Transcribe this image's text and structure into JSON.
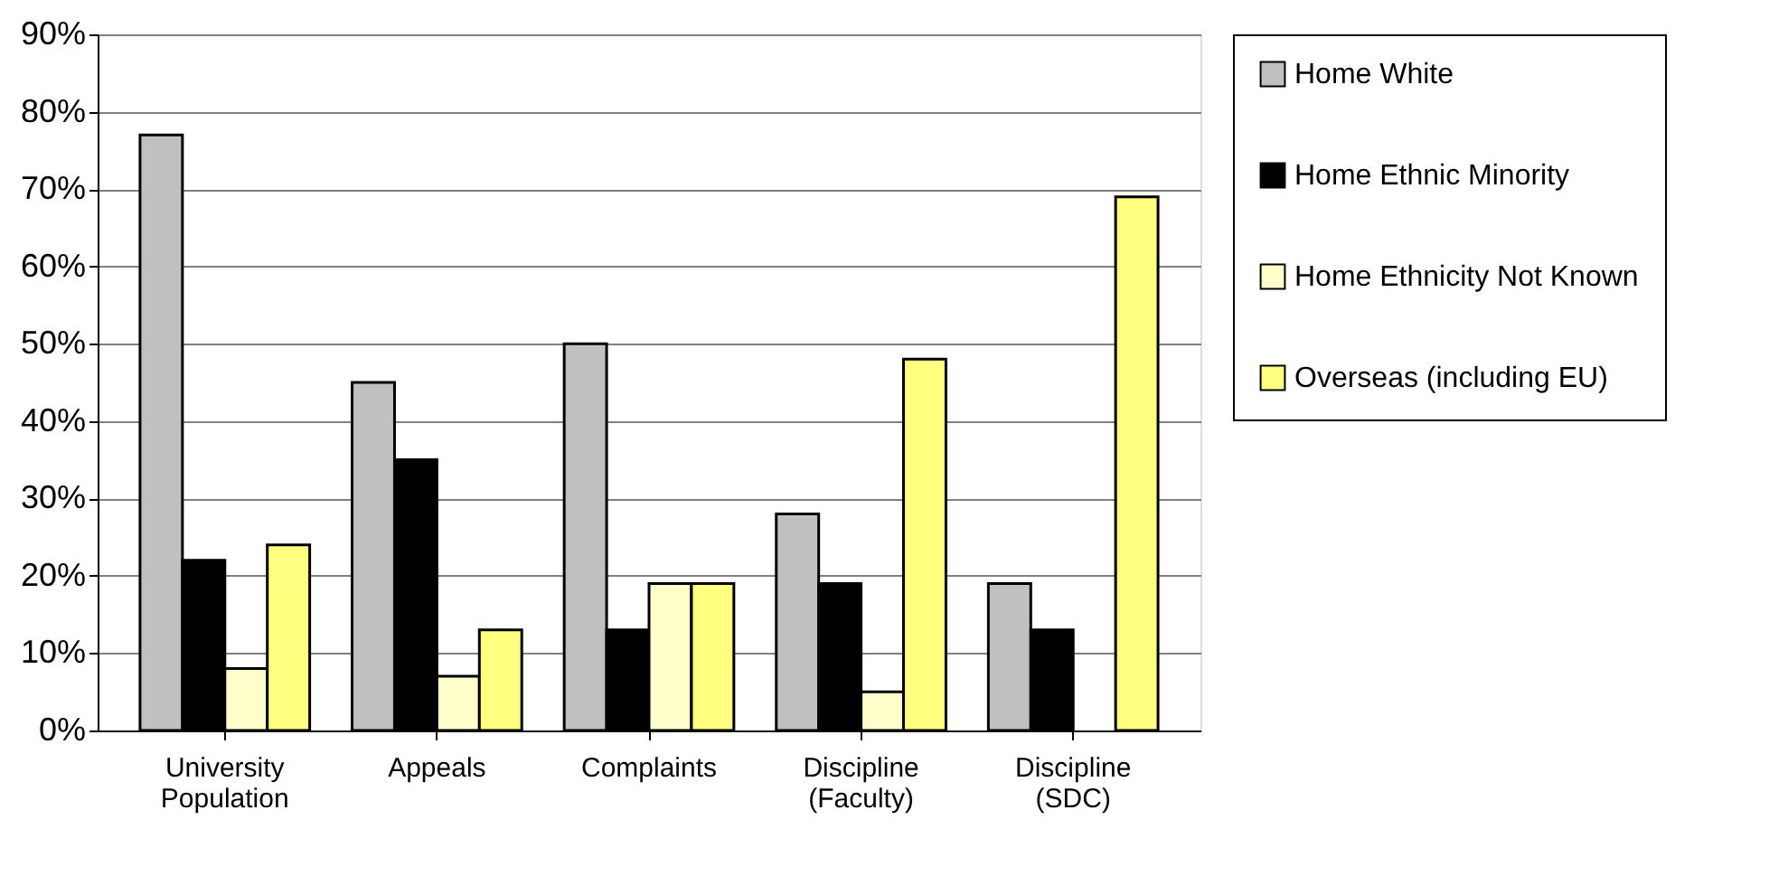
{
  "chart_data": {
    "type": "bar",
    "categories": [
      "University Population",
      "Appeals",
      "Complaints",
      "Discipline (Faculty)",
      "Discipline (SDC)"
    ],
    "series": [
      {
        "name": "Home White",
        "color": "#c0c0c0",
        "values": [
          77,
          45,
          50,
          28,
          19
        ]
      },
      {
        "name": "Home Ethnic Minority",
        "color": "#000000",
        "values": [
          22,
          35,
          13,
          19,
          13
        ]
      },
      {
        "name": "Home Ethnicity Not Known",
        "color": "#ffffcc",
        "values": [
          8,
          7,
          19,
          5,
          null
        ]
      },
      {
        "name": "Overseas (including EU)",
        "color": "#ffff80",
        "values": [
          24,
          13,
          19,
          48,
          69
        ]
      }
    ],
    "ylim": [
      0,
      90
    ],
    "yticks": [
      {
        "value": 0,
        "label": "0%"
      },
      {
        "value": 10,
        "label": "10%"
      },
      {
        "value": 20,
        "label": "20%"
      },
      {
        "value": 30,
        "label": "30%"
      },
      {
        "value": 40,
        "label": "40%"
      },
      {
        "value": 50,
        "label": "50%"
      },
      {
        "value": 60,
        "label": "60%"
      },
      {
        "value": 70,
        "label": "70%"
      },
      {
        "value": 80,
        "label": "80%"
      },
      {
        "value": 90,
        "label": "90%"
      }
    ],
    "grid": "y",
    "legend": "right"
  }
}
